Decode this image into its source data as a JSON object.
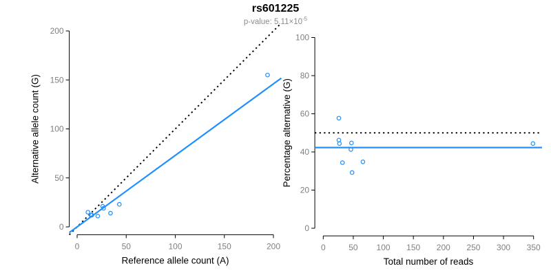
{
  "header": {
    "title": "rs601225",
    "subtitle_text": "p-value: 5.11×10",
    "subtitle_exponent": "-5"
  },
  "colors": {
    "point": "#1E90FF",
    "fit_line": "#1E90FF",
    "reference_line": "#000000",
    "axis": "#000000",
    "tick_label": "#808080",
    "axis_title": "#000000",
    "title": "#000000",
    "subtitle": "#8c8c8c"
  },
  "chart_data": [
    {
      "type": "scatter",
      "panel": "allele-counts",
      "xlabel": "Reference allele count (A)",
      "ylabel": "Alternative allele count (G)",
      "xlim": [
        0,
        200
      ],
      "ylim": [
        0,
        200
      ],
      "xticks": [
        0,
        50,
        100,
        150,
        200
      ],
      "yticks": [
        0,
        50,
        100,
        150,
        200
      ],
      "grid": false,
      "points": [
        [
          11,
          15
        ],
        [
          14,
          12
        ],
        [
          15,
          12
        ],
        [
          21,
          11
        ],
        [
          26,
          21
        ],
        [
          27,
          19
        ],
        [
          34,
          14
        ],
        [
          43,
          23
        ],
        [
          194,
          155
        ]
      ],
      "lines": [
        {
          "name": "identity-line",
          "style": "dotted",
          "color": "#000000",
          "slope": 1,
          "intercept": 0
        },
        {
          "name": "fit-line",
          "style": "solid",
          "color": "#1E90FF",
          "slope": 0.73,
          "intercept": 0
        }
      ]
    },
    {
      "type": "scatter",
      "panel": "percentage-vs-reads",
      "xlabel": "Total number of reads",
      "ylabel": "Percentage alternative (G)",
      "xlim": [
        0,
        350
      ],
      "ylim": [
        0,
        100
      ],
      "xticks": [
        0,
        50,
        100,
        150,
        200,
        250,
        300,
        350
      ],
      "yticks": [
        0,
        20,
        40,
        60,
        80,
        100
      ],
      "grid": false,
      "points": [
        [
          26,
          57.7
        ],
        [
          26,
          46.2
        ],
        [
          27,
          44.4
        ],
        [
          32,
          34.4
        ],
        [
          46,
          41.3
        ],
        [
          47,
          44.7
        ],
        [
          48,
          29.2
        ],
        [
          66,
          34.8
        ],
        [
          349,
          44.4
        ]
      ],
      "lines": [
        {
          "name": "expected-percentage-line",
          "style": "dotted",
          "color": "#000000",
          "slope": 0,
          "intercept": 50
        },
        {
          "name": "mean-percentage-line",
          "style": "solid",
          "color": "#1E90FF",
          "slope": 0,
          "intercept": 42.3
        }
      ]
    }
  ]
}
